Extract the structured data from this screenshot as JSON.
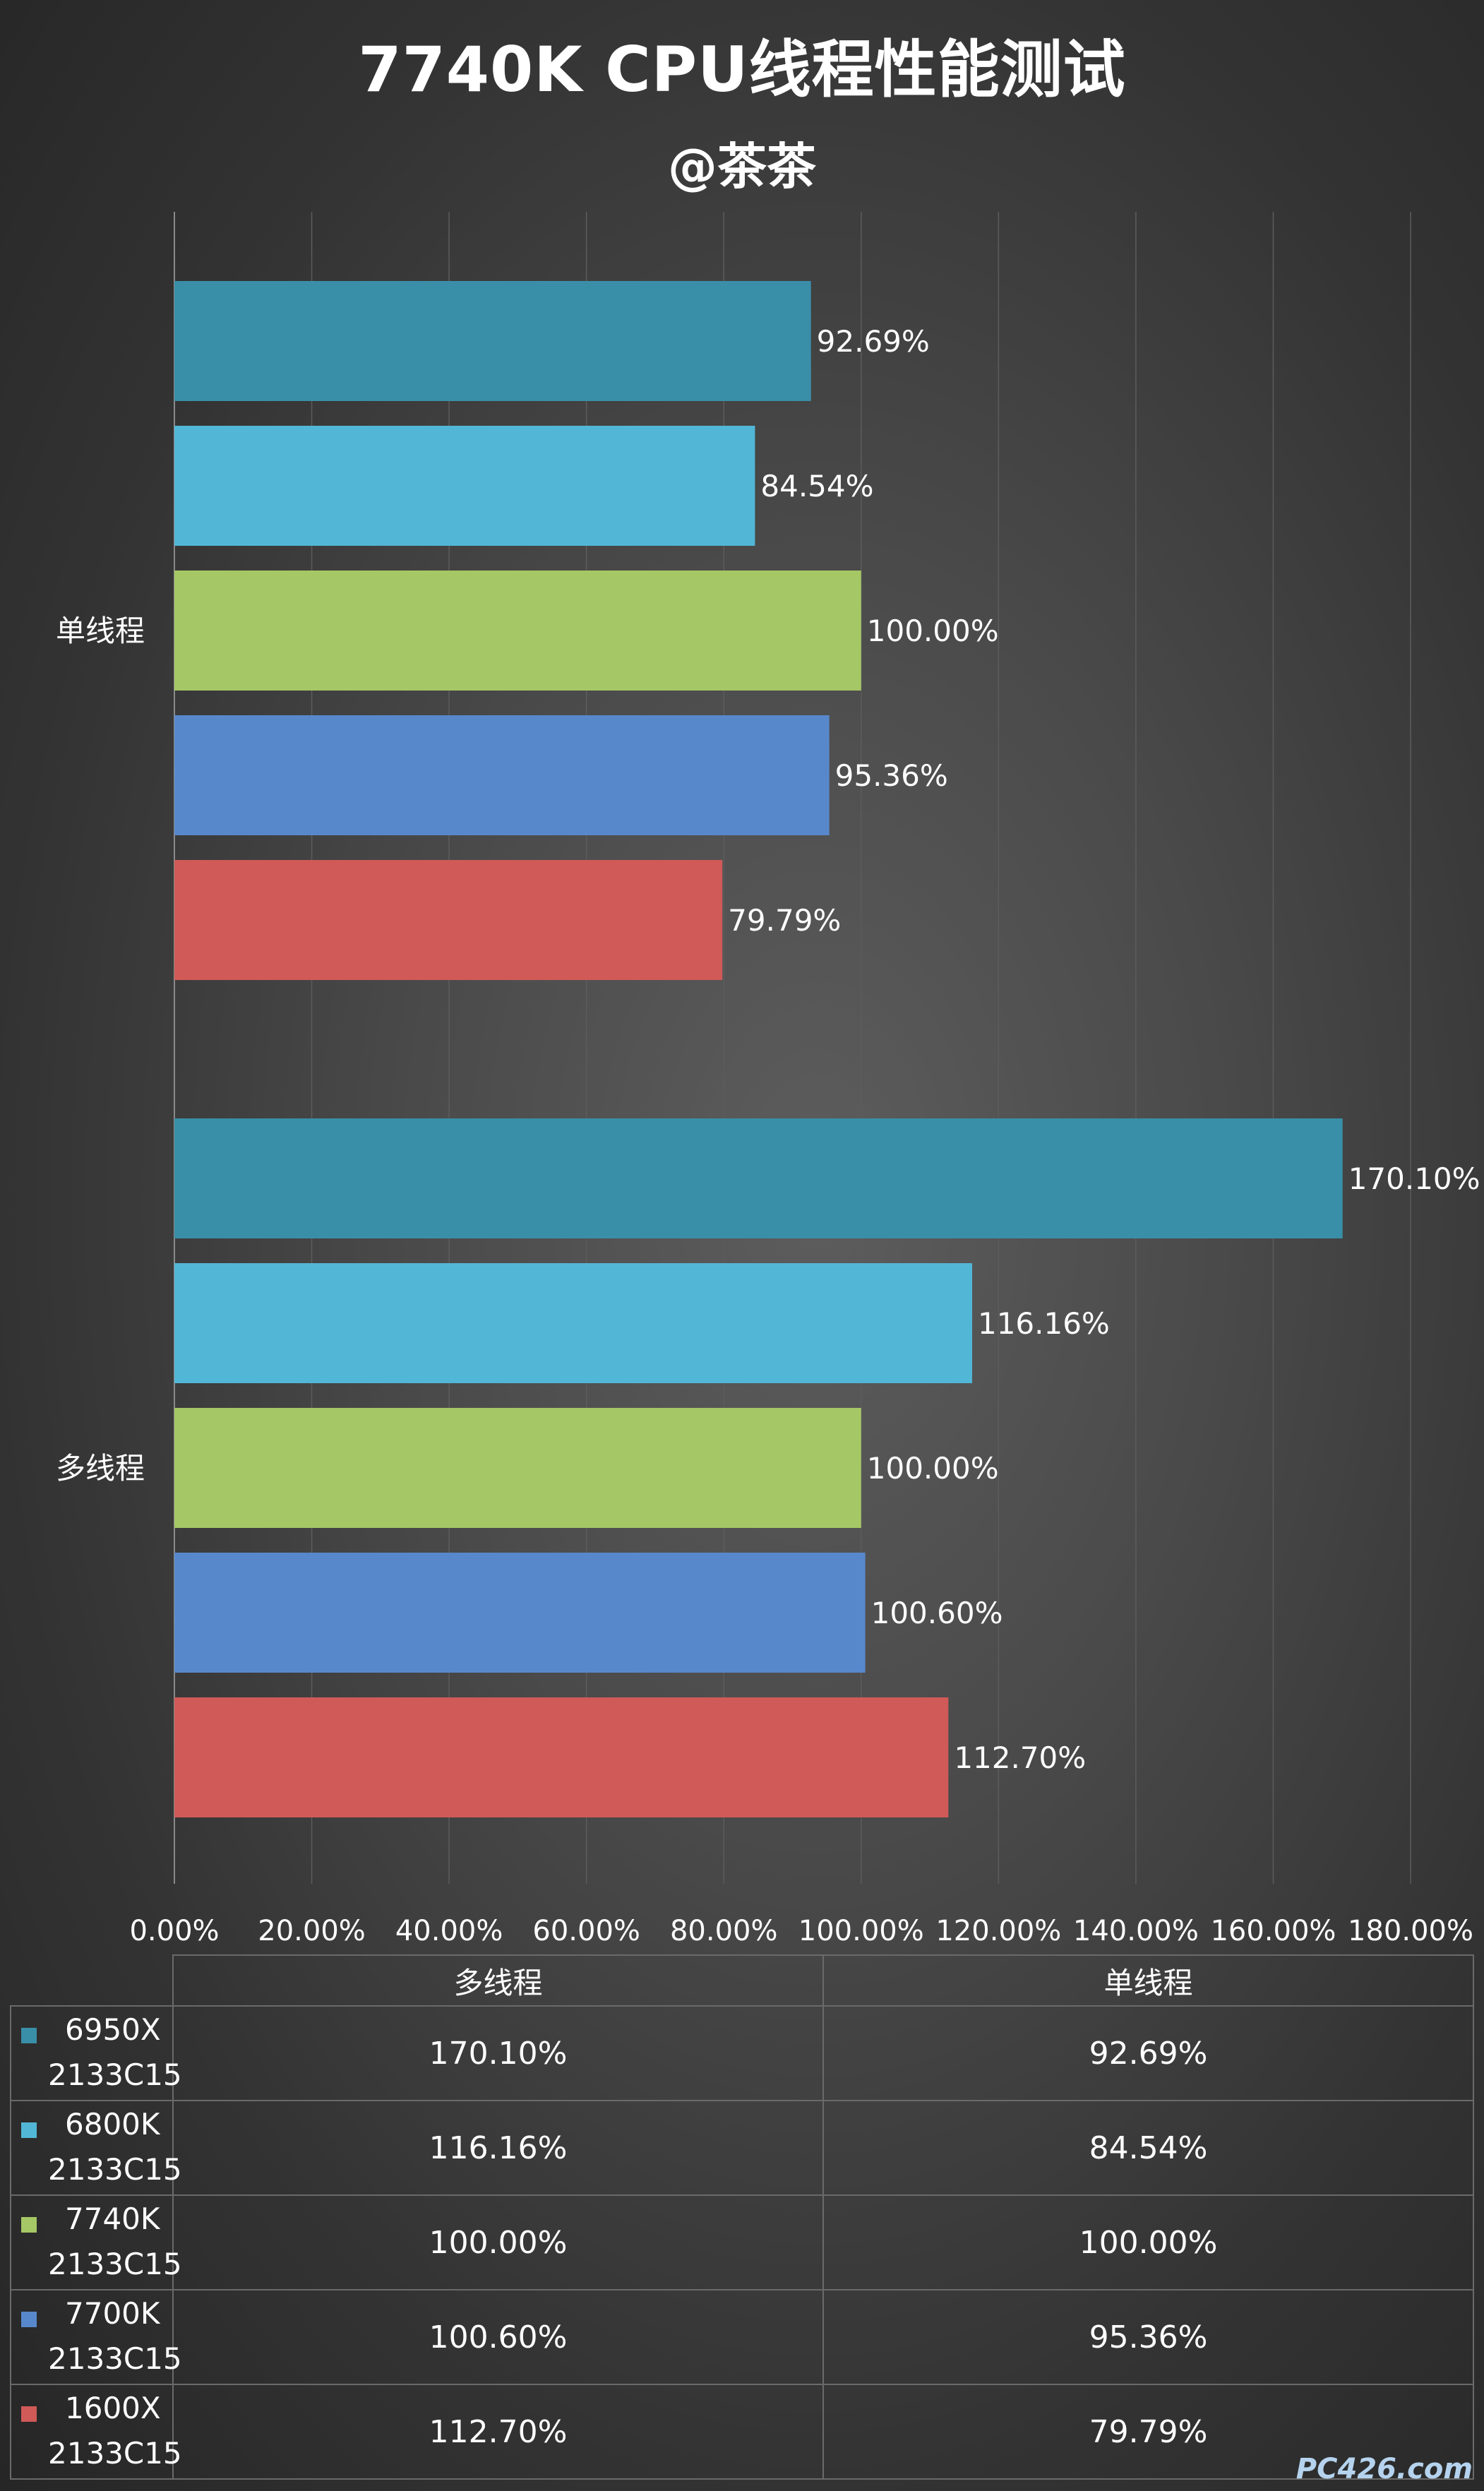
{
  "title": "7740K CPU线程性能测试",
  "subtitle": "@茶茶",
  "watermark": "PC426.com",
  "chart_data": {
    "type": "bar",
    "orientation": "horizontal",
    "title": "7740K CPU线程性能测试",
    "subtitle": "@茶茶",
    "categories": [
      "单线程",
      "多线程"
    ],
    "series": [
      {
        "name": "6950X 2133C15",
        "line1": "6950X",
        "line2": "2133C15",
        "color": "#3a8fa8",
        "values": [
          92.69,
          170.1
        ],
        "labels": [
          "92.69%",
          "170.10%"
        ]
      },
      {
        "name": "6800K 2133C15",
        "line1": "6800K",
        "line2": "2133C15",
        "color": "#52b7d6",
        "values": [
          84.54,
          116.16
        ],
        "labels": [
          "84.54%",
          "116.16%"
        ]
      },
      {
        "name": "7740K 2133C15",
        "line1": "7740K",
        "line2": "2133C15",
        "color": "#a6c765",
        "values": [
          100.0,
          100.0
        ],
        "labels": [
          "100.00%",
          "100.00%"
        ]
      },
      {
        "name": "7700K 2133C15",
        "line1": "7700K",
        "line2": "2133C15",
        "color": "#5888cc",
        "values": [
          95.36,
          100.6
        ],
        "labels": [
          "95.36%",
          "100.60%"
        ]
      },
      {
        "name": "1600X 2133C15",
        "line1": "1600X",
        "line2": "2133C15",
        "color": "#d05a57",
        "values": [
          79.79,
          112.7
        ],
        "labels": [
          "79.79%",
          "112.70%"
        ]
      }
    ],
    "xlim": [
      0,
      180
    ],
    "xticks": [
      0,
      20,
      40,
      60,
      80,
      100,
      120,
      140,
      160,
      180
    ],
    "xtick_labels": [
      "0.00%",
      "20.00%",
      "40.00%",
      "60.00%",
      "80.00%",
      "100.00%",
      "120.00%",
      "140.00%",
      "160.00%",
      "180.00%"
    ],
    "grid": true,
    "legend": "data-table-below",
    "table_headers": [
      "多线程",
      "单线程"
    ],
    "table_rows": [
      [
        "170.10%",
        "92.69%"
      ],
      [
        "116.16%",
        "84.54%"
      ],
      [
        "100.00%",
        "100.00%"
      ],
      [
        "100.60%",
        "95.36%"
      ],
      [
        "112.70%",
        "79.79%"
      ]
    ]
  }
}
